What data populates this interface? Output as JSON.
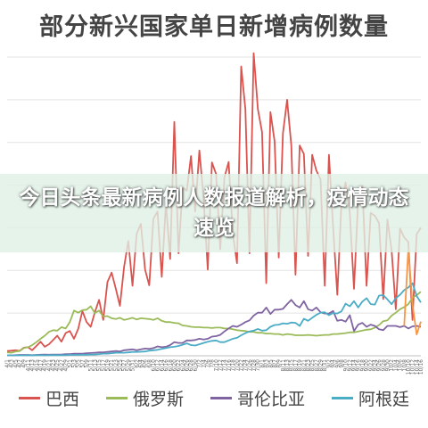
{
  "chart_data": {
    "type": "line",
    "title": "部分新兴国家单日新增病例数量",
    "xlabel": "",
    "ylabel": "",
    "ylim": [
      0,
      70000
    ],
    "grid": true,
    "legend_position": "bottom",
    "x": [
      "4/1",
      "4/3",
      "4/5",
      "4/7",
      "4/9",
      "4/11",
      "4/13",
      "4/15",
      "4/17",
      "4/19",
      "4/21",
      "4/23",
      "4/25",
      "4/27",
      "4/29",
      "5/1",
      "5/3",
      "5/5",
      "5/7",
      "5/9",
      "5/11",
      "5/13",
      "5/15",
      "5/17",
      "5/19",
      "5/21",
      "5/23",
      "5/25",
      "5/27",
      "5/29",
      "5/31",
      "6/2",
      "6/4",
      "6/6",
      "6/8",
      "6/10",
      "6/12",
      "6/14",
      "6/16",
      "6/18",
      "6/20",
      "6/22",
      "6/24",
      "6/26",
      "6/28",
      "6/30",
      "7/2",
      "7/4",
      "7/6",
      "7/8",
      "7/10",
      "7/12",
      "7/14",
      "7/16",
      "7/18",
      "7/20",
      "7/22",
      "7/24",
      "7/26",
      "7/28",
      "7/30",
      "8/1",
      "8/3",
      "8/5",
      "8/7",
      "8/9",
      "8/11",
      "8/13",
      "8/15",
      "8/17",
      "8/19",
      "8/21",
      "8/23",
      "8/25",
      "8/27",
      "8/29",
      "8/31",
      "9/2",
      "9/4",
      "9/6",
      "9/8",
      "9/10",
      "9/12",
      "9/14",
      "9/16",
      "9/18",
      "9/20",
      "9/22",
      "9/24",
      "9/26",
      "9/28",
      "9/30",
      "10/2",
      "10/4",
      "10/6",
      "10/8",
      "10/10",
      "10/12",
      "10/14",
      "10/16"
    ],
    "series": [
      {
        "name": "巴西",
        "color": "#d9534f",
        "values": [
          1100,
          1200,
          1300,
          1150,
          1900,
          2000,
          1300,
          2300,
          3300,
          2100,
          2700,
          3700,
          4700,
          3300,
          5300,
          5800,
          4000,
          6300,
          10500,
          7900,
          6800,
          10200,
          13100,
          8400,
          17300,
          19500,
          15700,
          11700,
          20900,
          26900,
          16400,
          28600,
          30900,
          20200,
          16500,
          32100,
          33800,
          18500,
          35800,
          22700,
          54800,
          24000,
          39400,
          38700,
          46800,
          33800,
          48100,
          37000,
          20200,
          45300,
          42600,
          25000,
          41800,
          45400,
          28500,
          21700,
          67800,
          57800,
          24000,
          70900,
          57800,
          52400,
          17000,
          57100,
          50200,
          23000,
          52100,
          60000,
          49300,
          19000,
          49300,
          47300,
          23400,
          47100,
          43400,
          41300,
          16400,
          47100,
          30200,
          14300,
          35800,
          40600,
          33500,
          15700,
          36700,
          39800,
          16400,
          33500,
          32800,
          31100,
          13300,
          31900,
          24700,
          10900,
          29800,
          27700,
          26700,
          8400,
          28500,
          30000
        ]
      },
      {
        "name": "俄罗斯",
        "color": "#9bbb59",
        "values": [
          800,
          700,
          1000,
          1100,
          1800,
          2000,
          2500,
          3200,
          4000,
          4700,
          5600,
          6000,
          5900,
          6700,
          6400,
          7900,
          10600,
          10100,
          10700,
          10800,
          11600,
          10000,
          10600,
          9200,
          9300,
          8800,
          8600,
          8900,
          8400,
          8600,
          8900,
          8500,
          8800,
          8700,
          8600,
          8400,
          8800,
          8200,
          7900,
          7900,
          7700,
          7600,
          7100,
          7000,
          6800,
          6700,
          6700,
          6600,
          6600,
          6500,
          6600,
          6600,
          6400,
          6400,
          6200,
          6000,
          5900,
          5800,
          5600,
          5600,
          5400,
          5400,
          5200,
          5200,
          5100,
          5100,
          4900,
          5100,
          5000,
          4800,
          4800,
          4800,
          4900,
          4800,
          4700,
          4800,
          4900,
          4900,
          5100,
          5100,
          5200,
          5300,
          5500,
          5500,
          5700,
          5900,
          6100,
          6200,
          6600,
          7200,
          8100,
          8300,
          9400,
          10100,
          10900,
          11400,
          12100,
          13600,
          14200,
          15000
        ]
      },
      {
        "name": "哥伦比亚",
        "color": "#8064a2",
        "values": [
          100,
          100,
          150,
          200,
          200,
          200,
          150,
          200,
          250,
          300,
          250,
          300,
          300,
          300,
          400,
          400,
          500,
          500,
          500,
          600,
          650,
          700,
          800,
          800,
          900,
          1000,
          1100,
          1000,
          1300,
          1400,
          1500,
          1300,
          1500,
          1700,
          1600,
          1800,
          2200,
          2000,
          2100,
          2500,
          3200,
          3000,
          3000,
          3600,
          3600,
          3700,
          4000,
          3800,
          4000,
          4500,
          4600,
          4900,
          5700,
          6400,
          7000,
          6800,
          7300,
          7900,
          8300,
          9400,
          10100,
          10100,
          11300,
          9800,
          10800,
          10800,
          11000,
          12100,
          13100,
          11900,
          11300,
          12800,
          10900,
          10600,
          11300,
          10200,
          9900,
          9900,
          10500,
          8200,
          8400,
          8000,
          9500,
          5800,
          7300,
          7700,
          6800,
          7300,
          7000,
          6200,
          6000,
          7000,
          7000,
          7000,
          6700,
          7000,
          6400,
          6900,
          7000,
          6800
        ]
      },
      {
        "name": "阿根廷",
        "color": "#4bacc6",
        "values": [
          100,
          100,
          100,
          100,
          100,
          150,
          100,
          150,
          150,
          100,
          150,
          150,
          150,
          150,
          150,
          200,
          200,
          200,
          250,
          250,
          300,
          300,
          400,
          500,
          500,
          600,
          700,
          700,
          700,
          800,
          900,
          900,
          950,
          1000,
          1200,
          1300,
          1400,
          1600,
          1800,
          2000,
          2100,
          2300,
          2600,
          2900,
          2500,
          2400,
          2700,
          3000,
          3300,
          3500,
          3600,
          3200,
          3200,
          3600,
          4000,
          4200,
          4800,
          5300,
          5700,
          5900,
          6300,
          5900,
          6000,
          6800,
          7200,
          7300,
          7600,
          7500,
          7800,
          7700,
          7000,
          8700,
          8200,
          8900,
          9600,
          10100,
          10200,
          9500,
          10000,
          9900,
          10400,
          12200,
          11600,
          12800,
          11300,
          12700,
          13500,
          12100,
          12000,
          14100,
          14200,
          13200,
          12100,
          13500,
          14300,
          15400,
          16000,
          17000,
          14000,
          12500
        ]
      },
      {
        "name": "",
        "color": "#f79646",
        "values": [
          null,
          null,
          null,
          null,
          null,
          null,
          null,
          null,
          null,
          null,
          null,
          null,
          null,
          null,
          null,
          null,
          null,
          null,
          null,
          null,
          null,
          null,
          null,
          null,
          null,
          null,
          null,
          null,
          null,
          null,
          null,
          null,
          null,
          null,
          null,
          null,
          null,
          null,
          null,
          null,
          null,
          null,
          null,
          null,
          null,
          null,
          null,
          null,
          null,
          null,
          null,
          null,
          null,
          null,
          null,
          null,
          null,
          null,
          null,
          null,
          null,
          null,
          null,
          null,
          null,
          null,
          null,
          null,
          null,
          null,
          null,
          null,
          null,
          null,
          null,
          null,
          null,
          null,
          null,
          null,
          null,
          null,
          null,
          null,
          null,
          null,
          null,
          null,
          null,
          null,
          null,
          null,
          null,
          null,
          null,
          7000,
          25000,
          12000,
          5000,
          8000
        ]
      }
    ]
  },
  "overlay": {
    "text": "今日头条最新病例人数报道解析，疫情动态速览"
  },
  "legend": [
    {
      "label": "巴西",
      "color": "#d9534f"
    },
    {
      "label": "俄罗斯",
      "color": "#9bbb59"
    },
    {
      "label": "哥伦比亚",
      "color": "#8064a2"
    },
    {
      "label": "阿根廷",
      "color": "#4bacc6"
    }
  ]
}
